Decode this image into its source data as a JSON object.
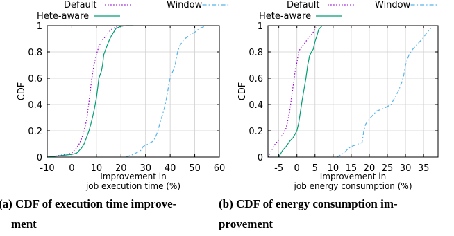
{
  "captions": {
    "a": [
      "(a) CDF of execution time improve-",
      "ment"
    ],
    "b": [
      "(b) CDF of energy consumption im-",
      "provement"
    ]
  },
  "colors": {
    "Default": "#9400d3",
    "Hete-aware": "#009e73",
    "Window": "#56b4e9"
  },
  "chart_data": [
    {
      "type": "line",
      "ylabel": "CDF",
      "xlabel": [
        "Improvement in",
        "job execution time (%)"
      ],
      "xlim": [
        -10,
        60
      ],
      "ylim": [
        0,
        1
      ],
      "xticks": [
        -10,
        0,
        10,
        20,
        30,
        40,
        50,
        60
      ],
      "yticks": [
        0,
        0.2,
        0.4,
        0.6,
        0.8,
        1
      ],
      "grid": true,
      "legend": "top",
      "series": [
        {
          "name": "Default",
          "style": "dotted",
          "x": [
            -10,
            -6,
            -2,
            0,
            1,
            2,
            3,
            4,
            5,
            6,
            6.5,
            7,
            7.5,
            8,
            8.5,
            9,
            10,
            10.5,
            11,
            12,
            13,
            14,
            15,
            16,
            18,
            20,
            22
          ],
          "y": [
            0,
            0.01,
            0.02,
            0.03,
            0.05,
            0.07,
            0.1,
            0.14,
            0.2,
            0.28,
            0.35,
            0.42,
            0.5,
            0.58,
            0.64,
            0.7,
            0.78,
            0.81,
            0.84,
            0.88,
            0.9,
            0.93,
            0.95,
            0.97,
            0.99,
            0.995,
            1.0
          ]
        },
        {
          "name": "Hete-aware",
          "style": "solid",
          "x": [
            -10,
            -5,
            0,
            2,
            3,
            4,
            5,
            6,
            7,
            8,
            9,
            10,
            10.5,
            11,
            12,
            12.5,
            13,
            14,
            15,
            16,
            17,
            18,
            20,
            22,
            25
          ],
          "y": [
            0,
            0.01,
            0.02,
            0.03,
            0.05,
            0.07,
            0.1,
            0.15,
            0.2,
            0.27,
            0.35,
            0.45,
            0.52,
            0.6,
            0.65,
            0.7,
            0.78,
            0.83,
            0.88,
            0.92,
            0.95,
            0.98,
            0.995,
            1.0,
            1.0
          ]
        },
        {
          "name": "Window",
          "style": "dashdot",
          "x": [
            22,
            25,
            28,
            29,
            31,
            33,
            34,
            35,
            36,
            37,
            38,
            39,
            39.5,
            40,
            41,
            42,
            43,
            44,
            45,
            46,
            48,
            50,
            52,
            55
          ],
          "y": [
            0,
            0.02,
            0.05,
            0.08,
            0.1,
            0.12,
            0.15,
            0.2,
            0.27,
            0.33,
            0.4,
            0.5,
            0.56,
            0.6,
            0.65,
            0.7,
            0.8,
            0.85,
            0.88,
            0.9,
            0.93,
            0.95,
            0.98,
            1.0
          ]
        }
      ]
    },
    {
      "type": "line",
      "ylabel": "CDF",
      "xlabel": [
        "Improvement in",
        "job energy consumption (%)"
      ],
      "xlim": [
        -8,
        39
      ],
      "ylim": [
        0,
        1
      ],
      "xticks": [
        -5,
        0,
        5,
        10,
        15,
        20,
        25,
        30,
        35
      ],
      "yticks": [
        0,
        0.2,
        0.4,
        0.6,
        0.8,
        1
      ],
      "grid": true,
      "legend": "top",
      "series": [
        {
          "name": "Default",
          "style": "dotted",
          "x": [
            -8,
            -7,
            -6,
            -5,
            -4,
            -3,
            -2.5,
            -2,
            -1.5,
            -1,
            -0.5,
            0,
            0.5,
            1,
            2,
            3,
            4,
            5,
            6
          ],
          "y": [
            0,
            0.05,
            0.1,
            0.13,
            0.17,
            0.22,
            0.28,
            0.35,
            0.45,
            0.55,
            0.65,
            0.72,
            0.8,
            0.83,
            0.86,
            0.9,
            0.93,
            0.97,
            1.0
          ]
        },
        {
          "name": "Hete-aware",
          "style": "solid",
          "x": [
            -5,
            -4,
            -3,
            -2,
            -1,
            0,
            0.5,
            1,
            1.5,
            2,
            2.5,
            3,
            3.5,
            4,
            4.5,
            5,
            5.5,
            6,
            7
          ],
          "y": [
            0,
            0.05,
            0.08,
            0.12,
            0.15,
            0.2,
            0.26,
            0.35,
            0.44,
            0.52,
            0.6,
            0.7,
            0.77,
            0.8,
            0.82,
            0.88,
            0.92,
            0.97,
            1.0
          ]
        },
        {
          "name": "Window",
          "style": "dashdot",
          "x": [
            11,
            13,
            14,
            15,
            16,
            17,
            18,
            18.5,
            19,
            20,
            21,
            22,
            24,
            26,
            27,
            28,
            29,
            29.5,
            30,
            31,
            32,
            33,
            34,
            35,
            36,
            37
          ],
          "y": [
            0,
            0.03,
            0.06,
            0.08,
            0.09,
            0.1,
            0.11,
            0.2,
            0.25,
            0.29,
            0.32,
            0.35,
            0.37,
            0.4,
            0.45,
            0.5,
            0.57,
            0.62,
            0.7,
            0.78,
            0.82,
            0.85,
            0.88,
            0.91,
            0.95,
            0.98
          ]
        }
      ]
    }
  ]
}
